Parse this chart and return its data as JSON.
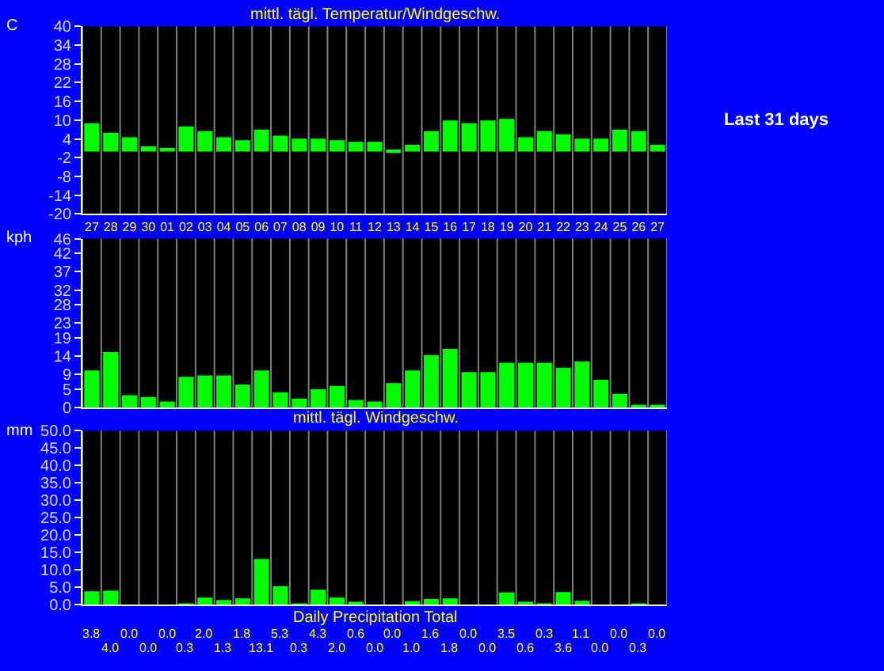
{
  "chart_data": [
    {
      "type": "bar",
      "title": "mittl. tägl. Temperatur/Windgeschw.",
      "ylabel": "C",
      "annotations": [
        "Last 31 days"
      ],
      "categories": [
        "27",
        "28",
        "29",
        "30",
        "01",
        "02",
        "03",
        "04",
        "05",
        "06",
        "07",
        "08",
        "09",
        "10",
        "11",
        "12",
        "13",
        "14",
        "15",
        "16",
        "17",
        "18",
        "19",
        "20",
        "21",
        "22",
        "23",
        "24",
        "25",
        "26",
        "27"
      ],
      "values": [
        9.0,
        6.0,
        4.5,
        1.6,
        1.1,
        8.0,
        6.5,
        4.5,
        3.6,
        7.0,
        5.0,
        4.1,
        4.1,
        3.6,
        3.1,
        3.1,
        0.6,
        2.1,
        6.5,
        9.9,
        9.0,
        9.9,
        10.4,
        4.5,
        6.5,
        5.5,
        4.1,
        4.1,
        7.0,
        6.5,
        2.1
      ],
      "color": "#00ff00",
      "ylim": [
        -20,
        40
      ],
      "yticks": [
        -20,
        -14,
        -8,
        -2,
        4,
        10,
        16,
        22,
        28,
        34,
        40
      ],
      "grid": "x"
    },
    {
      "type": "bar",
      "ylabel": "kph",
      "tick_labels": "y",
      "categories": [
        "27",
        "28",
        "29",
        "30",
        "01",
        "02",
        "03",
        "04",
        "05",
        "06",
        "07",
        "08",
        "09",
        "10",
        "11",
        "12",
        "13",
        "14",
        "15",
        "16",
        "17",
        "18",
        "19",
        "20",
        "21",
        "22",
        "23",
        "24",
        "25",
        "26",
        "27"
      ],
      "values": [
        10.1,
        15.1,
        3.4,
        2.9,
        1.7,
        8.4,
        8.8,
        8.8,
        6.3,
        10.1,
        4.2,
        2.5,
        5.0,
        5.9,
        2.1,
        1.7,
        6.7,
        10.1,
        14.3,
        16.0,
        9.7,
        9.7,
        12.2,
        12.2,
        12.2,
        10.9,
        12.6,
        7.6,
        3.8,
        0.8,
        0.8
      ],
      "color": "#00ff00",
      "ylim": [
        0,
        46
      ],
      "yticks": [
        0,
        5,
        9,
        14,
        19,
        23,
        28,
        32,
        37,
        42,
        46
      ],
      "grid": "x"
    },
    {
      "type": "bar",
      "title": "mittl. tägl. Windgeschw.",
      "xlabel": "Daily Precipitation Total",
      "ylabel": "mm",
      "tick_labels": "y",
      "categories": [
        "27",
        "28",
        "29",
        "30",
        "01",
        "02",
        "03",
        "04",
        "05",
        "06",
        "07",
        "08",
        "09",
        "10",
        "11",
        "12",
        "13",
        "14",
        "15",
        "16",
        "17",
        "18",
        "19",
        "20",
        "21",
        "22",
        "23",
        "24",
        "25",
        "26",
        "27"
      ],
      "values": [
        3.8,
        4.0,
        0.0,
        0.0,
        0.0,
        0.3,
        2.0,
        1.3,
        1.8,
        13.1,
        5.3,
        0.3,
        4.3,
        2.0,
        0.6,
        0.0,
        0.0,
        1.0,
        1.6,
        1.8,
        0.0,
        0.0,
        3.5,
        0.6,
        0.3,
        3.6,
        1.1,
        0.0,
        0.0,
        0.3,
        0.0
      ],
      "value_labels": [
        "3.8",
        "4.0",
        "0.0",
        "0.0",
        "0.0",
        "0.3",
        "2.0",
        "1.3",
        "1.8",
        "13.1",
        "5.3",
        "0.3",
        "4.3",
        "2.0",
        "0.6",
        "0.0",
        "0.0",
        "1.0",
        "1.6",
        "1.8",
        "0.0",
        "0.0",
        "3.5",
        "0.6",
        "0.3",
        "3.6",
        "1.1",
        "0.0",
        "0.0",
        "0.3",
        "0.0"
      ],
      "color": "#00ff00",
      "ylim": [
        0,
        50
      ],
      "yticks": [
        {
          "value": 0,
          "label": "0.0"
        },
        {
          "value": 5,
          "label": "5.0"
        },
        {
          "value": 10,
          "label": "10.0"
        },
        {
          "value": 15,
          "label": "15.0"
        },
        {
          "value": 20,
          "label": "20.0"
        },
        {
          "value": 25,
          "label": "25.0"
        },
        {
          "value": 30,
          "label": "30.0"
        },
        {
          "value": 35,
          "label": "35.0"
        },
        {
          "value": 40,
          "label": "40.0"
        },
        {
          "value": 45,
          "label": "45.0"
        },
        {
          "value": 50,
          "label": "50.0"
        }
      ],
      "grid": "x"
    }
  ]
}
